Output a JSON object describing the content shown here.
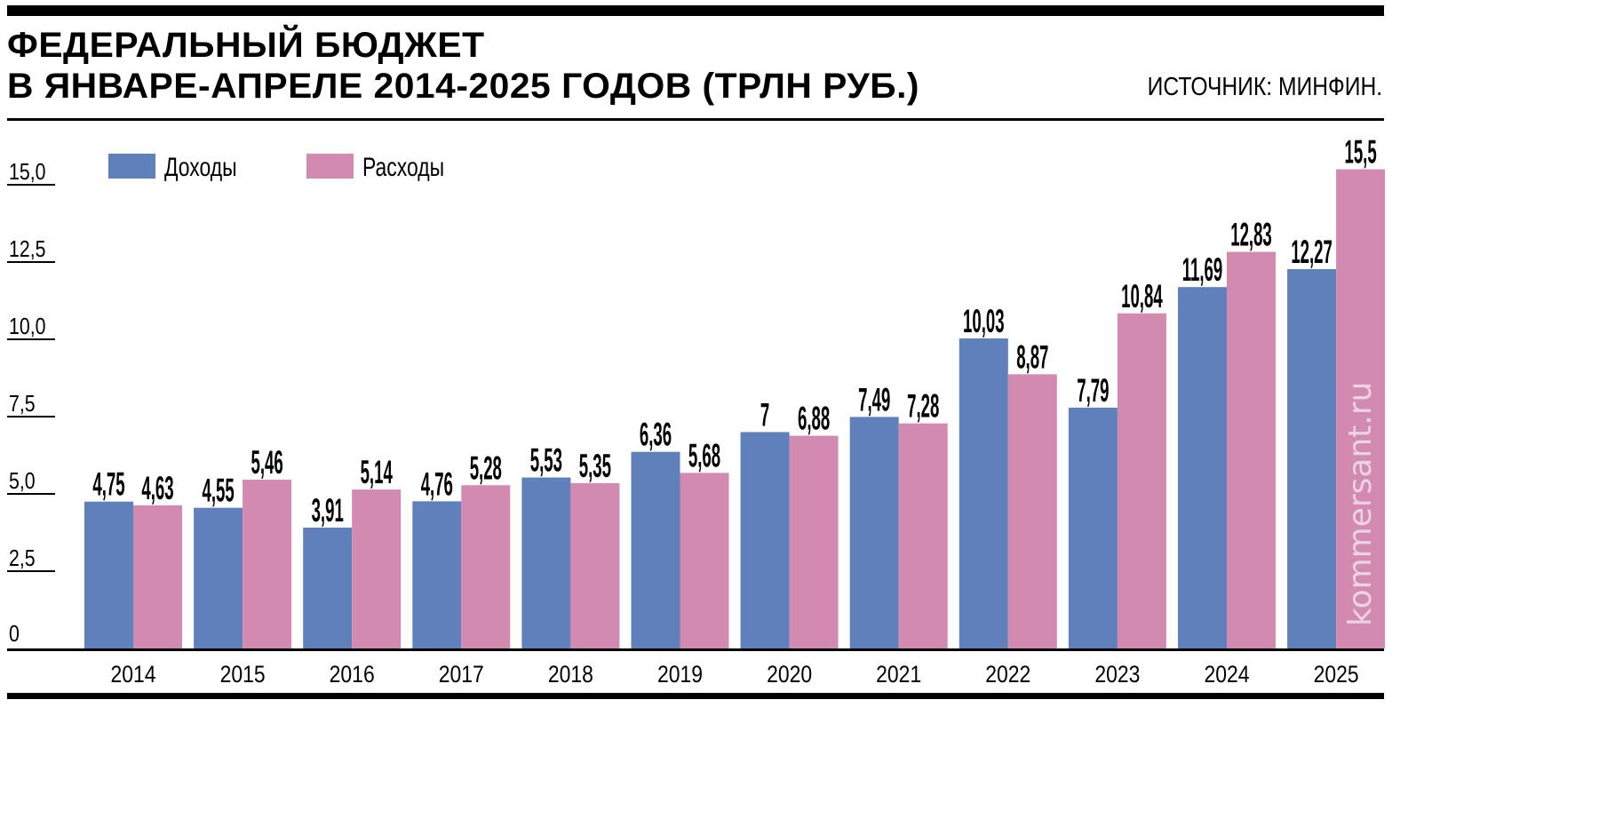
{
  "header": {
    "title_line1": "ФЕДЕРАЛЬНЫЙ БЮДЖЕТ",
    "title_line2": "В ЯНВАРЕ-АПРЕЛЕ 2014-2025 ГОДОВ (ТРЛН РУБ.)",
    "source": "ИСТОЧНИК: МИНФИН."
  },
  "watermark": "kommersant.ru",
  "chart_data": {
    "type": "bar",
    "title": "ФЕДЕРАЛЬНЫЙ БЮДЖЕТ В ЯНВАРЕ-АПРЕЛЕ 2014-2025 ГОДОВ (ТРЛН РУБ.)",
    "xlabel": "",
    "ylabel": "",
    "ylim": [
      0,
      15.5
    ],
    "grid": false,
    "legend_position": "top-left",
    "y_ticks": [
      {
        "value": 0,
        "label": "0"
      },
      {
        "value": 2.5,
        "label": "2,5"
      },
      {
        "value": 5,
        "label": "5,0"
      },
      {
        "value": 7.5,
        "label": "7,5"
      },
      {
        "value": 10,
        "label": "10,0"
      },
      {
        "value": 12.5,
        "label": "12,5"
      },
      {
        "value": 15,
        "label": "15,0"
      }
    ],
    "categories": [
      "2014",
      "2015",
      "2016",
      "2017",
      "2018",
      "2019",
      "2020",
      "2021",
      "2022",
      "2023",
      "2024",
      "2025"
    ],
    "series": [
      {
        "name": "Доходы",
        "color": "#5f80bb",
        "values": [
          4.75,
          4.55,
          3.91,
          4.76,
          5.53,
          6.36,
          7,
          7.49,
          10.03,
          7.79,
          11.69,
          12.27
        ],
        "labels": [
          "4,75",
          "4,55",
          "3,91",
          "4,76",
          "5,53",
          "6,36",
          "7",
          "7,49",
          "10,03",
          "7,79",
          "11,69",
          "12,27"
        ]
      },
      {
        "name": "Расходы",
        "color": "#d38ab1",
        "values": [
          4.63,
          5.46,
          5.14,
          5.28,
          5.35,
          5.68,
          6.88,
          7.28,
          8.87,
          10.84,
          12.83,
          15.5
        ],
        "labels": [
          "4,63",
          "5,46",
          "5,14",
          "5,28",
          "5,35",
          "5,68",
          "6,88",
          "7,28",
          "8,87",
          "10,84",
          "12,83",
          "15,5"
        ]
      }
    ]
  }
}
